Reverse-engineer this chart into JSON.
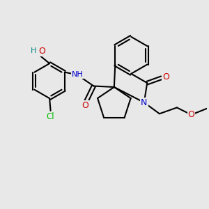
{
  "bg_color": "#e8e8e8",
  "bond_color": "#000000",
  "bond_width": 1.5,
  "atom_colors": {
    "N": "#0000cc",
    "O": "#cc0000",
    "Cl": "#00bb00",
    "H": "#008888"
  }
}
